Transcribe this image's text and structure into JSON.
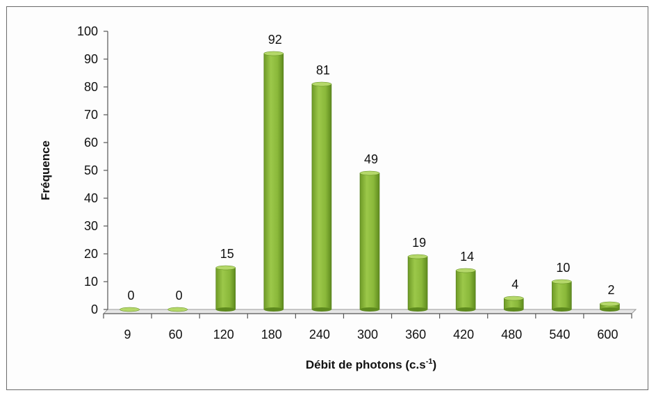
{
  "chart_data": {
    "type": "bar",
    "title": "",
    "xlabel": "Débit de photons (c.s",
    "xlabel_superscript": "-1",
    "xlabel_suffix": ")",
    "ylabel": "Fréquence",
    "categories": [
      "9",
      "60",
      "120",
      "180",
      "240",
      "300",
      "360",
      "420",
      "480",
      "540",
      "600"
    ],
    "values": [
      0,
      0,
      15,
      92,
      81,
      49,
      19,
      14,
      4,
      10,
      2
    ],
    "data_labels": [
      "0",
      "0",
      "15",
      "92",
      "81",
      "49",
      "19",
      "14",
      "4",
      "10",
      "2"
    ],
    "ylim": [
      0,
      100
    ],
    "yticks": [
      0,
      10,
      20,
      30,
      40,
      50,
      60,
      70,
      80,
      90,
      100
    ],
    "grid": false,
    "legend": "none",
    "colors": {
      "bar": "#8fbd3a",
      "bar_dark": "#5e8a1e",
      "bar_light": "#b5d86a",
      "floor": "#e6e6e6",
      "axis": "#555555"
    }
  }
}
